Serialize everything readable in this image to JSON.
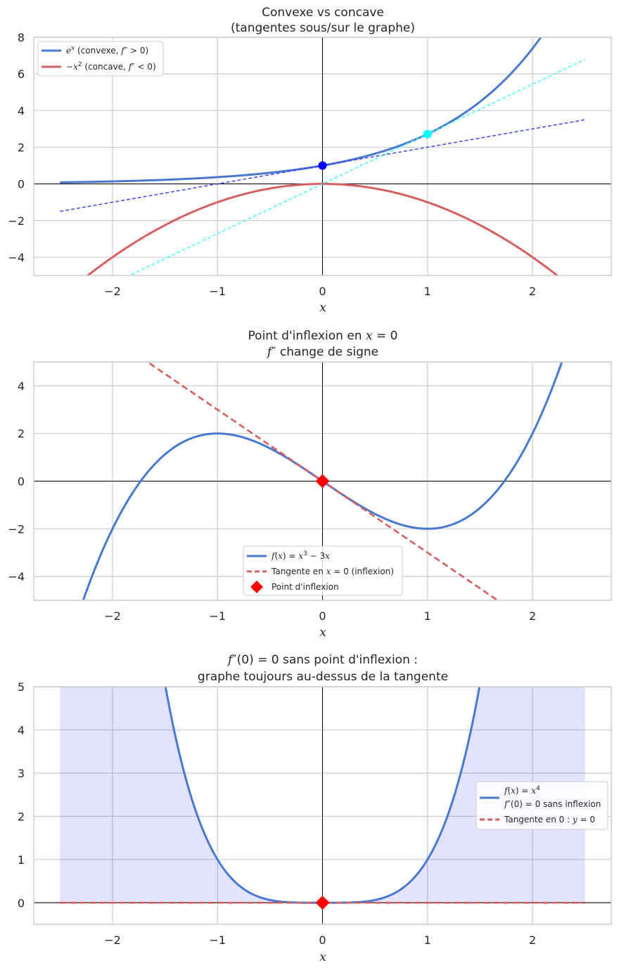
{
  "chart_data": [
    {
      "type": "line",
      "title": [
        "Convexe vs concave",
        "(tangentes sous/sur le graphe)"
      ],
      "xlabel": "x",
      "ylabel": "",
      "xlim": [
        -2.75,
        2.75
      ],
      "ylim": [
        -5,
        8
      ],
      "xticks": [
        -2,
        -1,
        0,
        1,
        2
      ],
      "yticks": [
        -4,
        -2,
        0,
        2,
        4,
        6,
        8
      ],
      "xtick_labels": [
        "−2",
        "−1",
        "0",
        "1",
        "2"
      ],
      "ytick_labels": [
        "−4",
        "−2",
        "0",
        "2",
        "4",
        "6",
        "8"
      ],
      "grid": true,
      "legend_placement": "upper-left",
      "series": [
        {
          "name": "eˣ (convexe, f″ > 0)",
          "function": "exp(x)",
          "x_range": [
            -2.5,
            2.5
          ],
          "color": "#4878cf",
          "style": "solid"
        },
        {
          "name": "−x² (concave, f″ < 0)",
          "function": "-x^2",
          "x_range": [
            -2.5,
            2.5
          ],
          "color": "#d65f5f",
          "style": "solid"
        },
        {
          "function": "1 + x",
          "x_range": [
            -2.5,
            2.5
          ],
          "color": "#3333ee",
          "style": "dashed"
        },
        {
          "function": "2.718*x",
          "x_range": [
            -2.5,
            2.5
          ],
          "color": "#33ffff",
          "style": "dashed"
        }
      ],
      "points": [
        {
          "x": 0,
          "y": 1,
          "color": "#0000ff",
          "marker": "circle"
        },
        {
          "x": 1,
          "y": 2.718,
          "color": "#00ffff",
          "marker": "circle"
        }
      ]
    },
    {
      "type": "line",
      "title": [
        "Point d'inflexion en x = 0",
        "f″ change de signe"
      ],
      "xlabel": "x",
      "ylabel": "",
      "xlim": [
        -2.75,
        2.75
      ],
      "ylim": [
        -5,
        5
      ],
      "xticks": [
        -2,
        -1,
        0,
        1,
        2
      ],
      "yticks": [
        -4,
        -2,
        0,
        2,
        4
      ],
      "xtick_labels": [
        "−2",
        "−1",
        "0",
        "1",
        "2"
      ],
      "ytick_labels": [
        "−4",
        "−2",
        "0",
        "2",
        "4"
      ],
      "grid": true,
      "legend_placement": "lower-center",
      "series": [
        {
          "name": "f(x) = x³ − 3x",
          "function": "x^3 - 3x",
          "x_range": [
            -2.5,
            2.5
          ],
          "color": "#4878cf",
          "style": "solid"
        },
        {
          "name": "Tangente en x = 0 (inflexion)",
          "function": "-3x",
          "x_range": [
            -2.5,
            2.5
          ],
          "color": "#d65f5f",
          "style": "dashed"
        }
      ],
      "points": [
        {
          "name": "Point d'inflexion",
          "x": 0,
          "y": 0,
          "color": "#ff0000",
          "marker": "diamond"
        }
      ]
    },
    {
      "type": "line",
      "title": [
        "f″(0) = 0 sans point d'inflexion :",
        "graphe toujours au-dessus de la tangente"
      ],
      "xlabel": "x",
      "ylabel": "",
      "xlim": [
        -2.75,
        2.75
      ],
      "ylim": [
        -0.5,
        5
      ],
      "xticks": [
        -2,
        -1,
        0,
        1,
        2
      ],
      "yticks": [
        0,
        1,
        2,
        3,
        4,
        5
      ],
      "xtick_labels": [
        "−2",
        "−1",
        "0",
        "1",
        "2"
      ],
      "ytick_labels": [
        "0",
        "1",
        "2",
        "3",
        "4",
        "5"
      ],
      "grid": true,
      "legend_placement": "center-right",
      "fill": {
        "function": "x^4",
        "baseline": 0,
        "x_range": [
          -2.5,
          2.5
        ],
        "color": "#0000ff",
        "alpha": 0.11
      },
      "series": [
        {
          "name": [
            "f(x) = x⁴",
            "f″(0) = 0 sans inflexion"
          ],
          "function": "x^4",
          "x_range": [
            -2.5,
            2.5
          ],
          "color": "#4878cf",
          "style": "solid"
        },
        {
          "name": "Tangente en 0 : y = 0",
          "function": "0",
          "x_range": [
            -2.5,
            2.5
          ],
          "color": "#d65f5f",
          "style": "dashed"
        }
      ],
      "points": [
        {
          "x": 0,
          "y": 0,
          "color": "#ff0000",
          "marker": "diamond"
        }
      ]
    }
  ]
}
